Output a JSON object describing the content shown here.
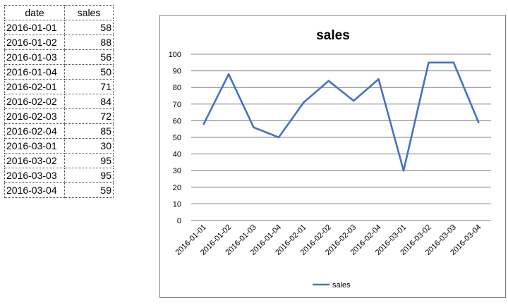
{
  "table": {
    "headers": [
      "date",
      "sales"
    ],
    "rows": [
      [
        "2016-01-01",
        "58"
      ],
      [
        "2016-01-02",
        "88"
      ],
      [
        "2016-01-03",
        "56"
      ],
      [
        "2016-01-04",
        "50"
      ],
      [
        "2016-02-01",
        "71"
      ],
      [
        "2016-02-02",
        "84"
      ],
      [
        "2016-02-03",
        "72"
      ],
      [
        "2016-02-04",
        "85"
      ],
      [
        "2016-03-01",
        "30"
      ],
      [
        "2016-03-02",
        "95"
      ],
      [
        "2016-03-03",
        "95"
      ],
      [
        "2016-03-04",
        "59"
      ]
    ]
  },
  "chart_data": {
    "type": "line",
    "title": "sales",
    "xlabel": "",
    "ylabel": "",
    "categories": [
      "2016-01-01",
      "2016-01-02",
      "2016-01-03",
      "2016-01-04",
      "2016-02-01",
      "2016-02-02",
      "2016-02-03",
      "2016-02-04",
      "2016-03-01",
      "2016-03-02",
      "2016-03-03",
      "2016-03-04"
    ],
    "series": [
      {
        "name": "sales",
        "values": [
          58,
          88,
          56,
          50,
          71,
          84,
          72,
          85,
          30,
          95,
          95,
          59
        ],
        "color": "#4472c4"
      }
    ],
    "ylim": [
      0,
      100
    ],
    "yticks": [
      0,
      10,
      20,
      30,
      40,
      50,
      60,
      70,
      80,
      90,
      100
    ],
    "grid": "horizontal",
    "legend": "bottom",
    "gridline_color": "#7f7f7f"
  }
}
